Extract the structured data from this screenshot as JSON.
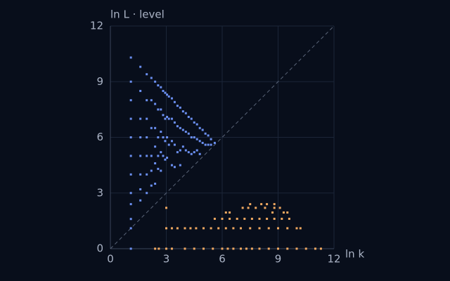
{
  "chart_data": {
    "type": "scatter",
    "y_label": "ln L · level",
    "x_label": "ln k",
    "xlim": [
      0,
      12
    ],
    "ylim": [
      0,
      12
    ],
    "xticks": [
      0,
      3,
      6,
      9,
      12
    ],
    "yticks": [
      0,
      3,
      6,
      9,
      12
    ],
    "grid": true,
    "diagonal": true,
    "series": [
      {
        "color": "#6b8ff0",
        "x": [
          1.1,
          1.1,
          1.1,
          1.1,
          1.1,
          1.1,
          1.1,
          1.1,
          1.1,
          1.1,
          1.1,
          1.1,
          1.61,
          1.61,
          1.61,
          1.61,
          1.61,
          1.61,
          1.61,
          1.61,
          1.95,
          1.95,
          1.95,
          1.95,
          1.95,
          1.95,
          1.95,
          2.2,
          2.2,
          2.2,
          2.2,
          2.2,
          2.2,
          2.4,
          2.4,
          2.4,
          2.4,
          2.4,
          2.4,
          2.56,
          2.56,
          2.56,
          2.56,
          2.56,
          2.71,
          2.71,
          2.71,
          2.71,
          2.71,
          2.83,
          2.83,
          2.83,
          2.83,
          2.94,
          2.94,
          2.94,
          2.94,
          3.04,
          3.04,
          3.04,
          3.04,
          3.14,
          3.14,
          3.14,
          3.3,
          3.3,
          3.3,
          3.3,
          3.45,
          3.45,
          3.45,
          3.45,
          3.6,
          3.6,
          3.6,
          3.75,
          3.75,
          3.75,
          3.75,
          3.9,
          3.9,
          3.9,
          4.05,
          4.05,
          4.05,
          4.2,
          4.2,
          4.2,
          4.35,
          4.35,
          4.35,
          4.5,
          4.5,
          4.5,
          4.65,
          4.65,
          4.65,
          4.8,
          4.8,
          4.8,
          4.95,
          4.95,
          5.1,
          5.1,
          5.25,
          5.25,
          5.4,
          5.4,
          5.6
        ],
        "y": [
          10.3,
          9,
          8,
          7,
          6,
          5,
          4,
          3,
          2.4,
          1.6,
          1.1,
          0,
          9.8,
          8.5,
          7,
          6,
          5,
          4,
          3.2,
          2.6,
          9.4,
          8,
          7,
          6,
          5,
          4,
          3,
          9.2,
          8,
          6.5,
          5,
          4.2,
          3.4,
          9,
          7.8,
          6.5,
          5.5,
          4.6,
          3.5,
          8.8,
          7.5,
          6,
          5,
          4.3,
          8.7,
          7.5,
          6.3,
          5.2,
          4.2,
          8.5,
          7.2,
          6,
          5,
          8.4,
          7,
          5.8,
          4.8,
          8.3,
          7.1,
          6,
          4.9,
          8.2,
          7,
          5.6,
          8.1,
          7,
          5.8,
          4.5,
          7.9,
          6.8,
          5.6,
          4.4,
          7.7,
          6.6,
          5.2,
          7.6,
          6.5,
          5.3,
          4.5,
          7.4,
          6.4,
          5.5,
          7.3,
          6.3,
          5.3,
          7.1,
          6.2,
          5.2,
          7,
          6,
          5.1,
          6.8,
          6,
          5.2,
          6.7,
          5.9,
          5.3,
          6.5,
          5.8,
          5.1,
          6.4,
          5.7,
          6.2,
          5.6,
          6.1,
          5.6,
          5.9,
          5.6,
          5.7
        ]
      },
      {
        "color": "#f0a860",
        "x": [
          2.4,
          2.6,
          3,
          3.3,
          4,
          4.5,
          5,
          5.5,
          6,
          6.3,
          6.6,
          7,
          7.3,
          7.6,
          8,
          8.5,
          9,
          9.5,
          10,
          10.5,
          11,
          11.3,
          3,
          3.3,
          3.6,
          4,
          4.3,
          4.6,
          5,
          5.4,
          5.8,
          6.2,
          6.6,
          7,
          7.5,
          8,
          8.5,
          9,
          9.5,
          10,
          10.2,
          5.6,
          6,
          6.4,
          6.8,
          7.2,
          7.6,
          8,
          8.4,
          8.8,
          9.2,
          9.6,
          6.2,
          6.4,
          8.7,
          9.3,
          9.5,
          3,
          7.1,
          7.4,
          7.8,
          8.3,
          8.8,
          9.1,
          7.5,
          8.1,
          8.4,
          8.8
        ],
        "y": [
          0,
          0,
          0,
          0,
          0,
          0,
          0,
          0,
          0,
          0,
          0,
          0,
          0,
          0,
          0,
          0,
          0,
          0,
          0,
          0,
          0,
          0,
          1.1,
          1.1,
          1.1,
          1.1,
          1.1,
          1.1,
          1.1,
          1.1,
          1.1,
          1.1,
          1.1,
          1.1,
          1.1,
          1.1,
          1.1,
          1.1,
          1.1,
          1.1,
          1.1,
          1.61,
          1.61,
          1.61,
          1.61,
          1.61,
          1.61,
          1.61,
          1.61,
          1.61,
          1.61,
          1.61,
          1.95,
          1.95,
          1.95,
          1.95,
          1.95,
          2.2,
          2.2,
          2.2,
          2.2,
          2.2,
          2.2,
          2.2,
          2.4,
          2.4,
          2.4,
          2.4
        ]
      }
    ]
  }
}
